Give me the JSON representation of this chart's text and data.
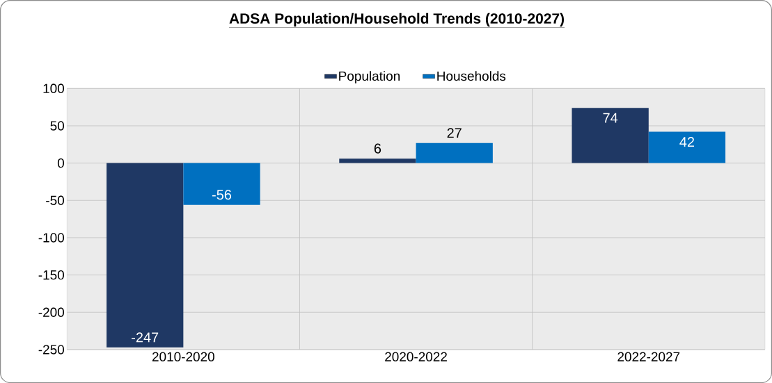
{
  "chart_data": {
    "type": "bar",
    "title": "ADSA Population/Household Trends (2010-2027)",
    "categories": [
      "2010-2020",
      "2020-2022",
      "2022-2027"
    ],
    "series": [
      {
        "name": "Population",
        "color": "#1f3864",
        "values": [
          -247,
          6,
          74
        ]
      },
      {
        "name": "Households",
        "color": "#0070c0",
        "values": [
          -56,
          27,
          42
        ]
      }
    ],
    "ylim": [
      -250,
      100
    ],
    "yticks": [
      -250,
      -200,
      -150,
      -100,
      -50,
      0,
      50,
      100
    ],
    "grid": true,
    "legend": "top",
    "data_labels": true
  }
}
